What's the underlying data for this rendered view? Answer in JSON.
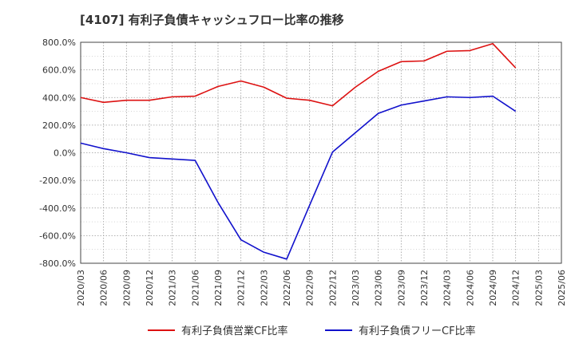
{
  "chart_data": {
    "type": "line",
    "title": "[4107]  有利子負債キャッシュフロー比率の推移",
    "xlabel": "",
    "ylabel": "",
    "ylim": [
      -800,
      800
    ],
    "y_ticks": [
      800,
      600,
      400,
      200,
      0,
      -200,
      -400,
      -600,
      -800
    ],
    "y_tick_labels": [
      "800.0%",
      "600.0%",
      "400.0%",
      "200.0%",
      "0.0%",
      "-200.0%",
      "-400.0%",
      "-600.0%",
      "-800.0%"
    ],
    "x": [
      "2020/03",
      "2020/06",
      "2020/09",
      "2020/12",
      "2021/03",
      "2021/06",
      "2021/09",
      "2021/12",
      "2022/03",
      "2022/06",
      "2022/09",
      "2022/12",
      "2023/03",
      "2023/06",
      "2023/09",
      "2023/12",
      "2024/03",
      "2024/06",
      "2024/09",
      "2024/12",
      "2025/03",
      "2025/06"
    ],
    "grid": true,
    "legend_position": "bottom",
    "series": [
      {
        "name": "有利子負債営業CF比率",
        "color": "#dd1111",
        "values": [
          400,
          365,
          380,
          380,
          405,
          410,
          480,
          520,
          475,
          395,
          380,
          340,
          475,
          590,
          660,
          665,
          735,
          740,
          790,
          615,
          null,
          null
        ]
      },
      {
        "name": "有利子負債フリーCF比率",
        "color": "#1111cc",
        "values": [
          70,
          30,
          0,
          -35,
          -45,
          -55,
          -360,
          -630,
          -720,
          -770,
          -380,
          5,
          145,
          285,
          345,
          375,
          405,
          400,
          410,
          300,
          null,
          null
        ]
      }
    ]
  }
}
